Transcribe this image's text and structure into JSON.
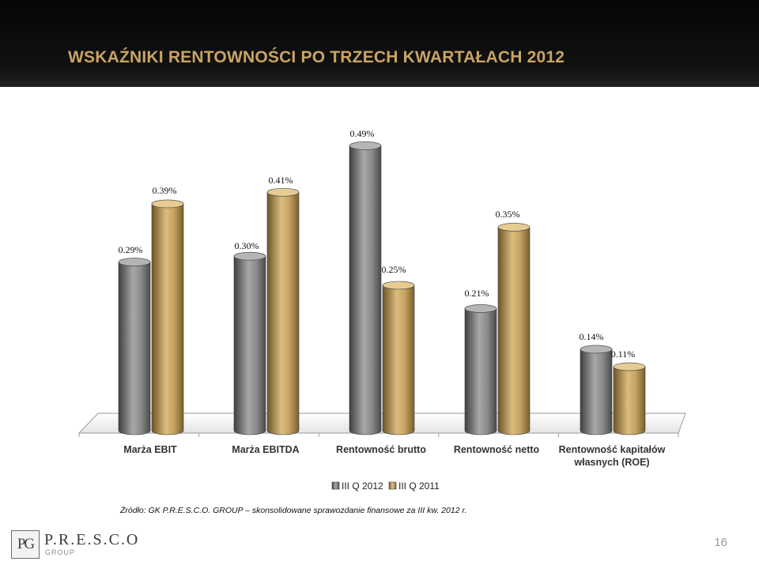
{
  "slide": {
    "title": "WSKAŹNIKI RENTOWNOŚCI PO TRZECH KWARTAŁACH 2012",
    "title_color": "#C9A463",
    "source": "Źródło: GK P.R.E.S.C.O. GROUP – skonsolidowane sprawozdanie finansowe za III kw. 2012 r.",
    "page_number": "16",
    "logo": {
      "mark": "PG",
      "name": "P.R.E.S.C.O",
      "sub": "GROUP"
    }
  },
  "chart_data": {
    "type": "bar",
    "style": "3d-cylinder",
    "categories": [
      [
        "Marża EBIT"
      ],
      [
        "Marża EBITDA"
      ],
      [
        "Rentowność brutto"
      ],
      [
        "Rentowność netto"
      ],
      [
        "Rentowność kapitałów",
        "własnych (ROE)"
      ]
    ],
    "series": [
      {
        "name": "III Q 2012",
        "color": "#8A8A8A",
        "values": [
          0.29,
          0.3,
          0.49,
          0.21,
          0.14
        ],
        "labels": [
          "0.29%",
          "0.30%",
          "0.49%",
          "0.21%",
          "0.14%"
        ]
      },
      {
        "name": "III Q 2011",
        "color": "#C4A262",
        "values": [
          0.39,
          0.41,
          0.25,
          0.35,
          0.11
        ],
        "labels": [
          "0.39%",
          "0.41%",
          "0.25%",
          "0.35%",
          "0.11%"
        ]
      }
    ],
    "value_unit": "%",
    "ylim": [
      0,
      0.5
    ],
    "grid": false,
    "y_axis_visible": false,
    "legend_position": "bottom"
  }
}
